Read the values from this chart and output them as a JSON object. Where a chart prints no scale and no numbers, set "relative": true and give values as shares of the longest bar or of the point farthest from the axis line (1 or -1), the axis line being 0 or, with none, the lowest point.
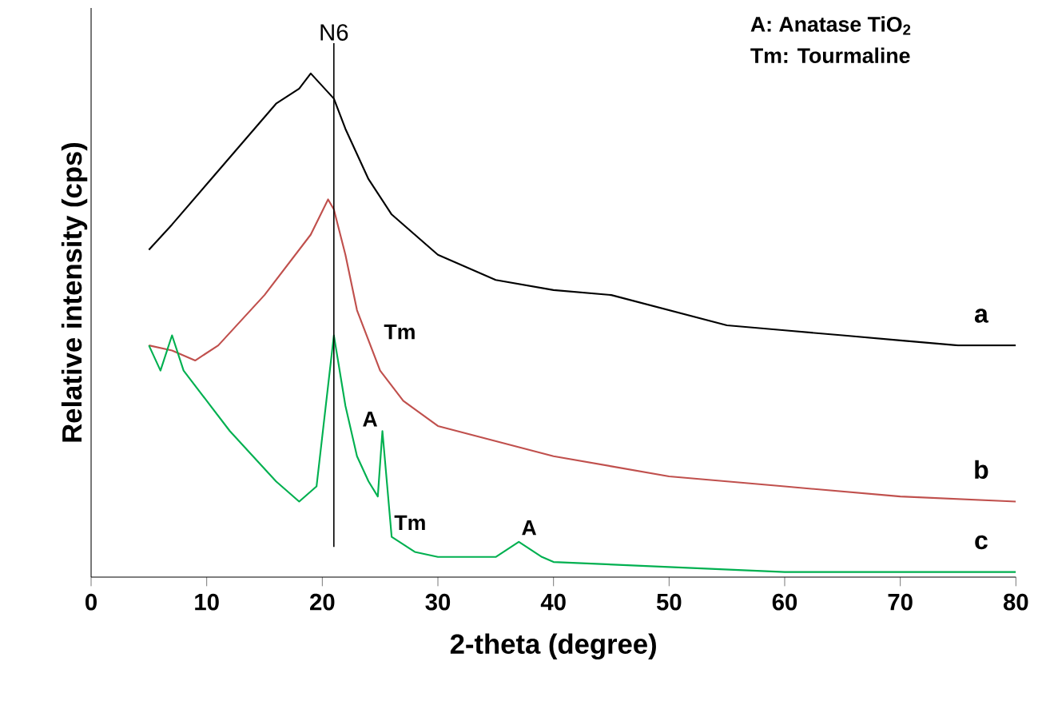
{
  "chart_data": {
    "type": "line",
    "relative": true,
    "xlabel": "2-theta (degree)",
    "ylabel": "Relative intensity (cps)",
    "xlim": [
      0,
      80
    ],
    "xticks": [
      0,
      10,
      20,
      30,
      40,
      50,
      60,
      70,
      80
    ],
    "marker": "none",
    "line_style": "solid",
    "series": [
      {
        "name": "a",
        "color": "#000000",
        "x": [
          5,
          7,
          10,
          13,
          16,
          18,
          19,
          21,
          22,
          24,
          26,
          30,
          35,
          40,
          45,
          50,
          55,
          60,
          65,
          70,
          75,
          80
        ],
        "values": [
          0.65,
          0.7,
          0.78,
          0.86,
          0.94,
          0.97,
          1.0,
          0.95,
          0.89,
          0.79,
          0.72,
          0.64,
          0.59,
          0.57,
          0.56,
          0.53,
          0.5,
          0.49,
          0.48,
          0.47,
          0.46,
          0.46
        ]
      },
      {
        "name": "b",
        "color": "#c0504d",
        "x": [
          5,
          7,
          9,
          11,
          13,
          15,
          17,
          19,
          20.5,
          21,
          22,
          23,
          25,
          27,
          30,
          35,
          40,
          45,
          50,
          60,
          70,
          80
        ],
        "values": [
          0.46,
          0.45,
          0.43,
          0.46,
          0.51,
          0.56,
          0.62,
          0.68,
          0.75,
          0.73,
          0.64,
          0.53,
          0.41,
          0.35,
          0.3,
          0.27,
          0.24,
          0.22,
          0.2,
          0.18,
          0.16,
          0.15
        ]
      },
      {
        "name": "c",
        "color": "#00b050",
        "x": [
          5,
          6,
          7,
          8,
          10,
          12,
          14,
          16,
          18,
          19.5,
          20.5,
          21,
          22,
          23,
          24,
          24.8,
          25.2,
          26,
          28,
          30,
          35,
          37,
          39,
          40,
          50,
          60,
          70,
          80
        ],
        "values": [
          0.46,
          0.41,
          0.48,
          0.41,
          0.35,
          0.29,
          0.24,
          0.19,
          0.15,
          0.18,
          0.38,
          0.48,
          0.34,
          0.24,
          0.19,
          0.16,
          0.29,
          0.08,
          0.05,
          0.04,
          0.04,
          0.07,
          0.04,
          0.03,
          0.02,
          0.01,
          0.01,
          0.01
        ]
      }
    ],
    "ref_lines": [
      {
        "axis": "x",
        "value": 21,
        "label": "N6"
      }
    ],
    "annotations": [
      "A: Anatase TiO$_{2}$",
      "Tm: Tourmaline",
      {
        "text": "Tm",
        "x": 24,
        "y": 0.47
      },
      {
        "text": "A",
        "x": 25.2,
        "y": 0.29
      },
      {
        "text": "Tm",
        "x": 26,
        "y": 0.08
      },
      {
        "text": "A",
        "x": 37,
        "y": 0.07
      }
    ]
  }
}
